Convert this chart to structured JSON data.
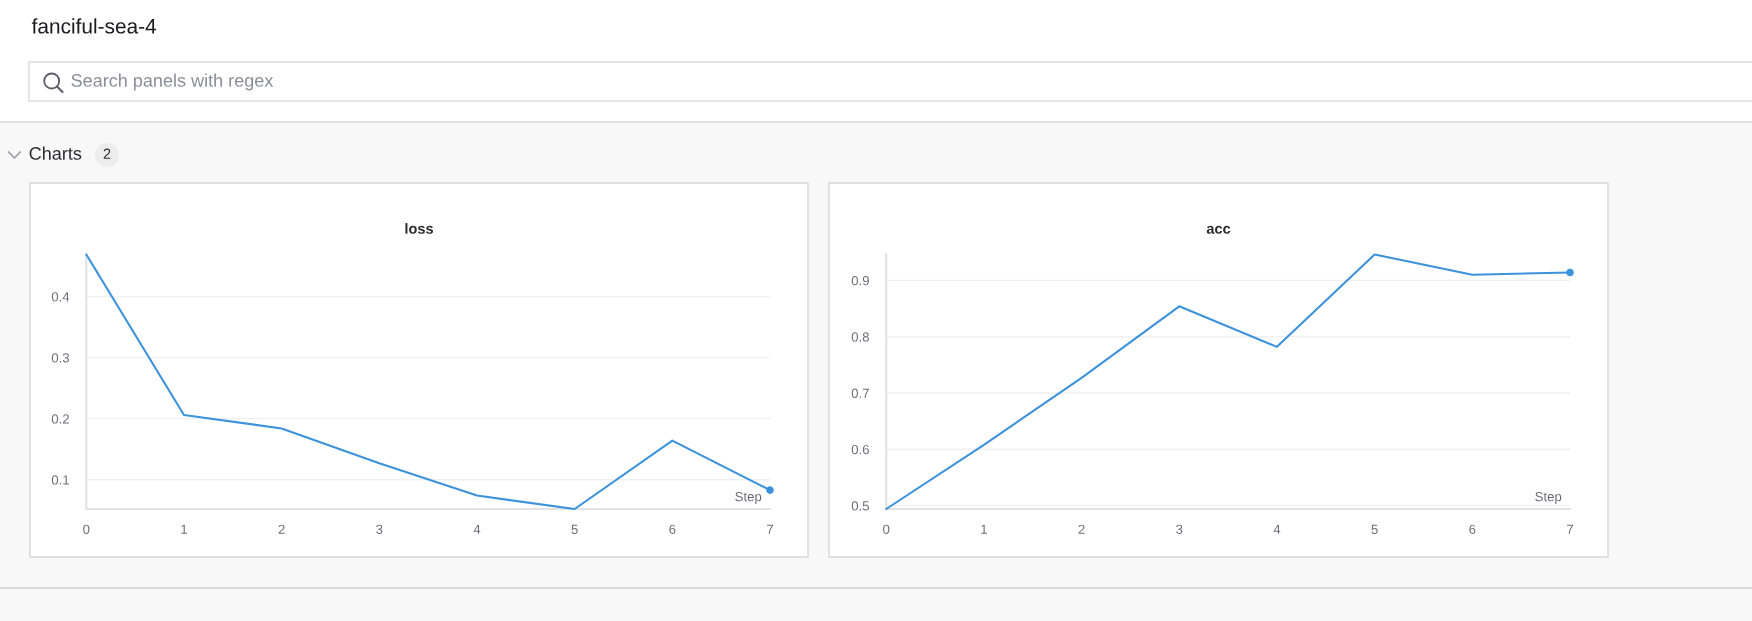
{
  "chart_data": [
    {
      "type": "line",
      "title": "loss",
      "xlabel": "Step",
      "x": [
        0,
        1,
        2,
        3,
        4,
        5,
        6,
        7
      ],
      "series": [
        {
          "color": "#3d92dc",
          "values": [
            0.469,
            0.206,
            0.184,
            0.127,
            0.074,
            0.052,
            0.164,
            0.083
          ]
        },
        {
          "type": "scatter",
          "color": "#3d92dc",
          "x": [
            7
          ],
          "values": [
            0.083
          ],
          "marker": "circle"
        }
      ],
      "xlim": [
        0,
        7
      ],
      "xticks": [
        0,
        1,
        2,
        3,
        4,
        5,
        6,
        7
      ],
      "ylim": [
        0.052,
        0.469
      ],
      "yticks": [
        0.1,
        0.2,
        0.3,
        0.4
      ],
      "grid": "y",
      "annotations": [
        "fanciful-sea-4",
        "Search panels with regex",
        "Charts",
        "2"
      ]
    },
    {
      "type": "line",
      "title": "acc",
      "xlabel": "Step",
      "x": [
        0,
        1,
        2,
        3,
        4,
        5,
        6,
        7
      ],
      "series": [
        {
          "color": "#3d92dc",
          "values": [
            0.494,
            0.608,
            0.727,
            0.854,
            0.782,
            0.946,
            0.91,
            0.914
          ]
        },
        {
          "type": "scatter",
          "color": "#3d92dc",
          "x": [
            7
          ],
          "values": [
            0.914
          ],
          "marker": "circle"
        }
      ],
      "xlim": [
        0,
        7
      ],
      "xticks": [
        0,
        1,
        2,
        3,
        4,
        5,
        6,
        7
      ],
      "ylim": [
        0.494,
        0.946
      ],
      "yticks": [
        0.5,
        0.6,
        0.7,
        0.8,
        0.9
      ],
      "grid": "y"
    }
  ]
}
